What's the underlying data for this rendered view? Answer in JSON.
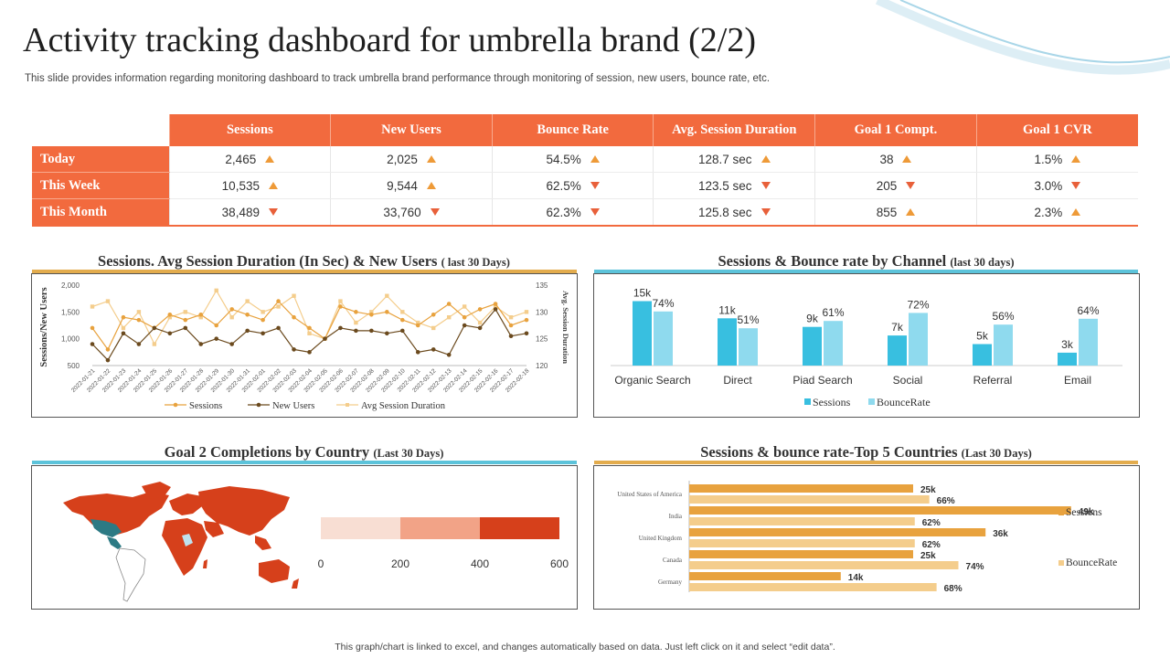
{
  "page": {
    "title": "Activity tracking dashboard for umbrella brand (2/2)",
    "subtitle": "This slide provides information regarding monitoring dashboard to track umbrella brand performance through monitoring of session, new users, bounce rate, etc.",
    "footnote": "This graph/chart is linked to excel, and changes automatically based on data. Just left click on it and select “edit data”."
  },
  "colors": {
    "accent_orange": "#f26a3e",
    "trend_up": "#ee9a38",
    "trend_down": "#e8603a",
    "sessions_blue": "#38bfe0",
    "bounce_blue": "#8fdaee",
    "gold_bar": "#e8a23e",
    "light_gold_bar": "#f4cd8c",
    "map_red": "#d6401b"
  },
  "kpi_table": {
    "columns": [
      "Sessions",
      "New Users",
      "Bounce Rate",
      "Avg. Session Duration",
      "Goal 1 Compt.",
      "Goal 1 CVR"
    ],
    "rows": [
      {
        "label": "Today",
        "cells": [
          {
            "value": "2,465",
            "trend": "up"
          },
          {
            "value": "2,025",
            "trend": "up"
          },
          {
            "value": "54.5%",
            "trend": "up"
          },
          {
            "value": "128.7 sec",
            "trend": "up"
          },
          {
            "value": "38",
            "trend": "up"
          },
          {
            "value": "1.5%",
            "trend": "up"
          }
        ]
      },
      {
        "label": "This Week",
        "cells": [
          {
            "value": "10,535",
            "trend": "up"
          },
          {
            "value": "9,544",
            "trend": "up"
          },
          {
            "value": "62.5%",
            "trend": "down"
          },
          {
            "value": "123.5 sec",
            "trend": "down"
          },
          {
            "value": "205",
            "trend": "down"
          },
          {
            "value": "3.0%",
            "trend": "down"
          }
        ]
      },
      {
        "label": "This Month",
        "cells": [
          {
            "value": "38,489",
            "trend": "down"
          },
          {
            "value": "33,760",
            "trend": "down"
          },
          {
            "value": "62.3%",
            "trend": "down"
          },
          {
            "value": "125.8 sec",
            "trend": "down"
          },
          {
            "value": "855",
            "trend": "up"
          },
          {
            "value": "2.3%",
            "trend": "up"
          }
        ]
      }
    ]
  },
  "panels": {
    "p1": {
      "title": "Sessions. Avg Session Duration (In Sec) & New Users",
      "title_suffix": "( last 30 Days)"
    },
    "p2": {
      "title": "Sessions & Bounce rate by Channel",
      "title_suffix": "(last 30 days)"
    },
    "p3": {
      "title": "Goal 2 Completions by Country",
      "title_suffix": "(Last 30 Days)"
    },
    "p4": {
      "title": "Sessions & bounce rate-Top 5 Countries",
      "title_suffix": "(Last 30 Days)"
    }
  },
  "chart_data": [
    {
      "id": "sessions_line",
      "type": "line",
      "title": "Sessions. Avg Session Duration (In Sec) & New Users ( last 30 Days)",
      "ylabel": "Sessions/New Users",
      "y2label": "Avg. Session Duration",
      "ylim": [
        500,
        2000
      ],
      "yticks": [
        "500",
        "1,000",
        "1,500",
        "2,000"
      ],
      "y2lim": [
        120,
        135
      ],
      "y2ticks": [
        "120",
        "125",
        "130",
        "135"
      ],
      "x": [
        "2022-01-21",
        "2022-01-22",
        "2022-01-23",
        "2022-01-24",
        "2022-01-25",
        "2022-01-26",
        "2022-01-27",
        "2022-01-28",
        "2022-01-29",
        "2022-01-30",
        "2022-01-31",
        "2022-02-01",
        "2022-02-02",
        "2022-02-03",
        "2022-02-04",
        "2022-02-05",
        "2022-02-06",
        "2022-02-07",
        "2022-02-08",
        "2022-02-09",
        "2022-02-10",
        "2022-02-11",
        "2022-02-12",
        "2022-02-13",
        "2022-02-14",
        "2022-02-15",
        "2022-02-16",
        "2022-02-17",
        "2022-02-18"
      ],
      "legend": [
        "Sessions",
        "New Users",
        "Avg Session Duration"
      ],
      "series": [
        {
          "name": "Sessions",
          "axis": "left",
          "values": [
            1200,
            800,
            1400,
            1350,
            1200,
            1450,
            1350,
            1450,
            1250,
            1550,
            1450,
            1350,
            1700,
            1400,
            1200,
            1000,
            1600,
            1500,
            1450,
            1500,
            1350,
            1250,
            1450,
            1650,
            1400,
            1550,
            1650,
            1250,
            1350
          ]
        },
        {
          "name": "New Users",
          "axis": "left",
          "values": [
            900,
            600,
            1100,
            900,
            1200,
            1100,
            1200,
            900,
            1000,
            900,
            1150,
            1100,
            1200,
            800,
            750,
            1000,
            1200,
            1150,
            1150,
            1100,
            1150,
            750,
            800,
            700,
            1250,
            1200,
            1550,
            1050,
            1100
          ]
        },
        {
          "name": "Avg Session Duration",
          "axis": "right",
          "values": [
            131,
            132,
            127,
            130,
            124,
            129,
            130,
            129,
            134,
            129,
            132,
            130,
            131,
            133,
            126,
            125,
            132,
            128,
            130,
            133,
            130,
            128,
            127,
            129,
            131,
            128,
            131,
            129,
            130
          ]
        }
      ],
      "colors": [
        "#e8a23e",
        "#6b4a1e",
        "#f4cd8c"
      ]
    },
    {
      "id": "channel_bars",
      "type": "bar",
      "title": "Sessions & Bounce rate by Channel (last 30 days)",
      "categories": [
        "Organic Search",
        "Direct",
        "Piad Search",
        "Social",
        "Referral",
        "Email"
      ],
      "series": [
        {
          "name": "Sessions",
          "values": [
            15,
            11,
            9,
            7,
            5,
            3
          ],
          "labels": [
            "15k",
            "11k",
            "9k",
            "7k",
            "5k",
            "3k"
          ]
        },
        {
          "name": "BounceRate",
          "values": [
            74,
            51,
            61,
            72,
            56,
            64
          ],
          "labels": [
            "74%",
            "51%",
            "61%",
            "72%",
            "56%",
            "64%"
          ]
        }
      ],
      "legend": [
        "Sessions",
        "BounceRate"
      ]
    },
    {
      "id": "goal2_scale",
      "type": "bar",
      "title": "Goal 2 Completions by Country (Last 30 Days)",
      "xlim": [
        0,
        600
      ],
      "xticks": [
        "0",
        "200",
        "400",
        "600"
      ],
      "bands": [
        {
          "from": 0,
          "to": 200,
          "color": "#f8ded3"
        },
        {
          "from": 200,
          "to": 400,
          "color": "#f2a387"
        },
        {
          "from": 400,
          "to": 600,
          "color": "#d6401b"
        }
      ]
    },
    {
      "id": "countries_hbar",
      "type": "bar",
      "orientation": "horizontal",
      "title": "Sessions & bounce rate-Top 5 Countries (Last 30 Days)",
      "categories": [
        "United States of America",
        "India",
        "United Kingdom",
        "Canada",
        "Germany"
      ],
      "series": [
        {
          "name": "Sessions",
          "values": [
            25,
            49,
            36,
            25,
            14
          ],
          "labels": [
            "25k",
            "49k",
            "36k",
            "25k",
            "14k"
          ]
        },
        {
          "name": "BounceRate",
          "values": [
            66,
            62,
            62,
            74,
            68
          ],
          "labels": [
            "66%",
            "62%",
            "62%",
            "74%",
            "68%"
          ]
        }
      ],
      "legend": [
        "Sessions",
        "BounceRate"
      ]
    }
  ]
}
